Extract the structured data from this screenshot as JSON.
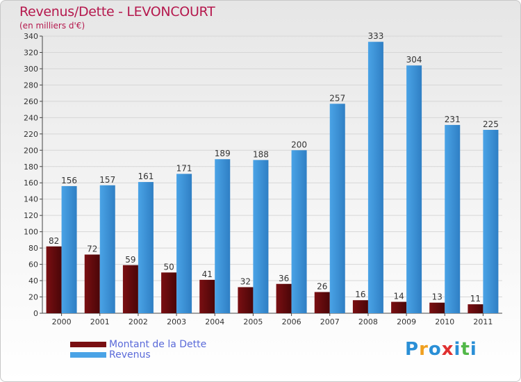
{
  "title": "Revenus/Dette - LEVONCOURT",
  "subtitle": "(en milliers d'€)",
  "legend": {
    "dette": "Montant de la Dette",
    "revenus": "Revenus"
  },
  "logo": {
    "text": "Proxiti",
    "letters": [
      "P",
      "r",
      "o",
      "x",
      "i",
      "t",
      "i"
    ],
    "colors": [
      "#2a8fd6",
      "#f0a020",
      "#2a8fd6",
      "#e03030",
      "#2a8fd6",
      "#52b848",
      "#2a8fd6"
    ]
  },
  "colors": {
    "dette": "#7a0f12",
    "dette_dark": "#4a0608",
    "revenus": "#4aa3e6",
    "revenus_dark": "#2f7fc4",
    "grid": "#d6d6d6",
    "axis": "#444444"
  },
  "chart_data": {
    "type": "bar",
    "title": "Revenus/Dette - LEVONCOURT",
    "ylabel": "(en milliers d'€)",
    "xlabel": "",
    "ylim": [
      0,
      340
    ],
    "ytick_step": 20,
    "grid": true,
    "categories": [
      "2000",
      "2001",
      "2002",
      "2003",
      "2004",
      "2005",
      "2006",
      "2007",
      "2008",
      "2009",
      "2010",
      "2011"
    ],
    "series": [
      {
        "name": "Montant de la Dette",
        "values": [
          82,
          72,
          59,
          50,
          41,
          32,
          36,
          26,
          16,
          14,
          13,
          11
        ]
      },
      {
        "name": "Revenus",
        "values": [
          156,
          157,
          161,
          171,
          189,
          188,
          200,
          257,
          333,
          304,
          231,
          225
        ]
      }
    ]
  }
}
